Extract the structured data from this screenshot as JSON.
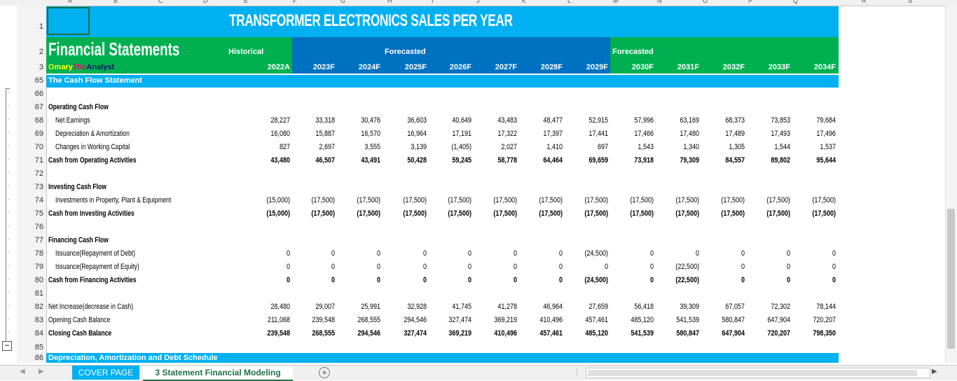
{
  "columns": [
    "A",
    "B",
    "C",
    "D",
    "E",
    "F",
    "G",
    "H",
    "I",
    "J",
    "K",
    "L",
    "M",
    "N",
    "O",
    "P",
    "Q",
    "R",
    "S"
  ],
  "title": "TRANSFORMER ELECTRONICS SALES PER YEAR",
  "financial_statements": "Financial Statements",
  "author_a": "Omary",
  "author_b": "The",
  "author_c": "Analyst",
  "hist_label": "Historical",
  "forecast_label": "Forecasted",
  "forecast_label2": "Forecasted",
  "years": [
    "2022A",
    "2023F",
    "2024F",
    "2025F",
    "2026F",
    "2027F",
    "2028F",
    "2029F",
    "2030F",
    "2031F",
    "2032F",
    "2033F",
    "2034F"
  ],
  "section_header": "The Cash Flow Statement",
  "section_next": "Depreciation, Amortization and Debt Schedule",
  "rows": [
    {
      "n": "66",
      "label": "",
      "bold": false,
      "vals": []
    },
    {
      "n": "67",
      "label": "Operating Cash Flow",
      "bold": true,
      "vals": []
    },
    {
      "n": "68",
      "label": "Net Earnings",
      "bold": false,
      "indent": true,
      "vals": [
        "28,227",
        "33,318",
        "30,476",
        "36,603",
        "40,649",
        "43,483",
        "48,477",
        "52,915",
        "57,996",
        "63,169",
        "68,373",
        "73,853",
        "79,684"
      ]
    },
    {
      "n": "69",
      "label": "Depreciation & Amortization",
      "bold": false,
      "indent": true,
      "vals": [
        "16,080",
        "15,887",
        "16,570",
        "16,964",
        "17,191",
        "17,322",
        "17,397",
        "17,441",
        "17,466",
        "17,480",
        "17,489",
        "17,493",
        "17,496"
      ]
    },
    {
      "n": "70",
      "label": "Changes in Working Capital",
      "bold": false,
      "indent": true,
      "vals": [
        "827",
        "2,697",
        "3,555",
        "3,139",
        "(1,405)",
        "2,027",
        "1,410",
        "697",
        "1,543",
        "1,340",
        "1,305",
        "1,544",
        "1,537"
      ]
    },
    {
      "n": "71",
      "label": "Cash from Operating Activities",
      "bold": true,
      "vals": [
        "43,480",
        "46,507",
        "43,491",
        "50,428",
        "59,245",
        "58,778",
        "64,464",
        "69,659",
        "73,918",
        "79,309",
        "84,557",
        "89,802",
        "95,644"
      ]
    },
    {
      "n": "72",
      "label": "",
      "bold": false,
      "vals": []
    },
    {
      "n": "73",
      "label": "Investing Cash Flow",
      "bold": true,
      "vals": []
    },
    {
      "n": "74",
      "label": "Investments in Property, Plant & Equipment",
      "bold": false,
      "indent": true,
      "vals": [
        "(15,000)",
        "(17,500)",
        "(17,500)",
        "(17,500)",
        "(17,500)",
        "(17,500)",
        "(17,500)",
        "(17,500)",
        "(17,500)",
        "(17,500)",
        "(17,500)",
        "(17,500)",
        "(17,500)"
      ]
    },
    {
      "n": "75",
      "label": "Cash from Investing Activities",
      "bold": true,
      "vals": [
        "(15,000)",
        "(17,500)",
        "(17,500)",
        "(17,500)",
        "(17,500)",
        "(17,500)",
        "(17,500)",
        "(17,500)",
        "(17,500)",
        "(17,500)",
        "(17,500)",
        "(17,500)",
        "(17,500)"
      ]
    },
    {
      "n": "76",
      "label": "",
      "bold": false,
      "vals": []
    },
    {
      "n": "77",
      "label": "Financing Cash Flow",
      "bold": true,
      "vals": []
    },
    {
      "n": "78",
      "label": "Issuance(Repayment of Debt)",
      "bold": false,
      "indent": true,
      "vals": [
        "0",
        "0",
        "0",
        "0",
        "0",
        "0",
        "0",
        "(24,500)",
        "0",
        "0",
        "0",
        "0",
        "0"
      ]
    },
    {
      "n": "79",
      "label": "Issuance(Repayment of Equity)",
      "bold": false,
      "indent": true,
      "vals": [
        "0",
        "0",
        "0",
        "0",
        "0",
        "0",
        "0",
        "0",
        "0",
        "(22,500)",
        "0",
        "0",
        "0"
      ]
    },
    {
      "n": "80",
      "label": "Cash from Financing Activities",
      "bold": true,
      "vals": [
        "0",
        "0",
        "0",
        "0",
        "0",
        "0",
        "0",
        "(24,500)",
        "0",
        "(22,500)",
        "0",
        "0",
        "0"
      ]
    },
    {
      "n": "81",
      "label": "",
      "bold": false,
      "vals": []
    },
    {
      "n": "82",
      "label": "Net Increase(decrease in Cash)",
      "bold": false,
      "vals": [
        "28,480",
        "29,007",
        "25,991",
        "32,928",
        "41,745",
        "41,278",
        "46,964",
        "27,659",
        "56,418",
        "39,309",
        "67,057",
        "72,302",
        "78,144"
      ]
    },
    {
      "n": "83",
      "label": "Opening Cash Balance",
      "bold": false,
      "vals": [
        "211,068",
        "239,548",
        "268,555",
        "294,546",
        "327,474",
        "369,219",
        "410,496",
        "457,461",
        "485,120",
        "541,539",
        "580,847",
        "647,904",
        "720,207"
      ]
    },
    {
      "n": "84",
      "label": "Closing Cash Balance",
      "bold": true,
      "vals": [
        "239,548",
        "268,555",
        "294,546",
        "327,474",
        "369,219",
        "410,496",
        "457,461",
        "485,120",
        "541,539",
        "580,847",
        "647,904",
        "720,207",
        "798,350"
      ]
    }
  ],
  "tabs": {
    "cover": "COVER PAGE",
    "active": "3 Statement Financial Modeling",
    "add": "+"
  },
  "colors": {
    "title_blue": "#00b0f0",
    "green": "#00b050",
    "dark_blue": "#0070c0"
  }
}
